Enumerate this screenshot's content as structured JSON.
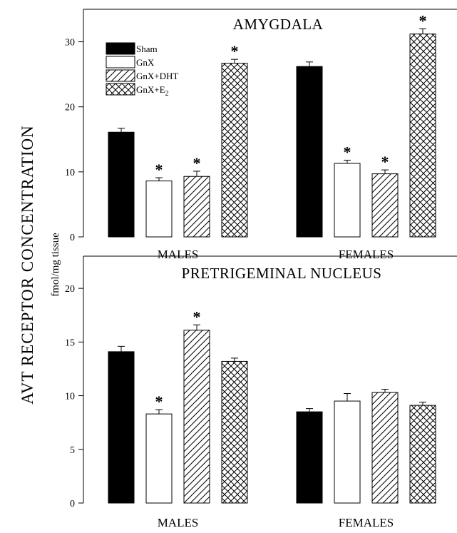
{
  "y_axis": {
    "label": "AVT RECEPTOR CONCENTRATION",
    "units": "fmol/mg tissue"
  },
  "legend": {
    "items": [
      {
        "label": "Sham",
        "pattern": "solid"
      },
      {
        "label": "GnX",
        "pattern": "empty"
      },
      {
        "label": "GnX+DHT",
        "pattern": "hatch"
      },
      {
        "label_main": "GnX+E",
        "label_sub": "2",
        "pattern": "crosshatch"
      }
    ]
  },
  "colors": {
    "ink": "#000000",
    "background": "#ffffff"
  },
  "chart_data": [
    {
      "type": "bar",
      "title": "AMYGDALA",
      "categories": [
        "MALES",
        "FEMALES"
      ],
      "series": [
        {
          "name": "Sham",
          "values": [
            16.1,
            26.2
          ],
          "errors": [
            0.6,
            0.7
          ],
          "significant": [
            false,
            false
          ]
        },
        {
          "name": "GnX",
          "values": [
            8.6,
            11.3
          ],
          "errors": [
            0.5,
            0.5
          ],
          "significant": [
            true,
            true
          ]
        },
        {
          "name": "GnX+DHT",
          "values": [
            9.3,
            9.7
          ],
          "errors": [
            0.8,
            0.6
          ],
          "significant": [
            true,
            true
          ]
        },
        {
          "name": "GnX+E2",
          "values": [
            26.7,
            31.2
          ],
          "errors": [
            0.6,
            0.8
          ],
          "significant": [
            true,
            true
          ]
        }
      ],
      "ylim": [
        0,
        35
      ],
      "yticks": [
        "0",
        "10",
        "20",
        "30"
      ],
      "significance_marker": "*",
      "grid": false
    },
    {
      "type": "bar",
      "title": "PRETRIGEMINAL NUCLEUS",
      "categories": [
        "MALES",
        "FEMALES"
      ],
      "series": [
        {
          "name": "Sham",
          "values": [
            14.1,
            8.5
          ],
          "errors": [
            0.5,
            0.3
          ],
          "significant": [
            false,
            false
          ]
        },
        {
          "name": "GnX",
          "values": [
            8.3,
            9.5
          ],
          "errors": [
            0.4,
            0.7
          ],
          "significant": [
            true,
            false
          ]
        },
        {
          "name": "GnX+DHT",
          "values": [
            16.1,
            10.3
          ],
          "errors": [
            0.5,
            0.3
          ],
          "significant": [
            true,
            false
          ]
        },
        {
          "name": "GnX+E2",
          "values": [
            13.2,
            9.1
          ],
          "errors": [
            0.3,
            0.3
          ],
          "significant": [
            false,
            false
          ]
        }
      ],
      "ylim": [
        0,
        23
      ],
      "yticks": [
        "0",
        "5",
        "10",
        "15",
        "20"
      ],
      "significance_marker": "*",
      "grid": false
    }
  ]
}
